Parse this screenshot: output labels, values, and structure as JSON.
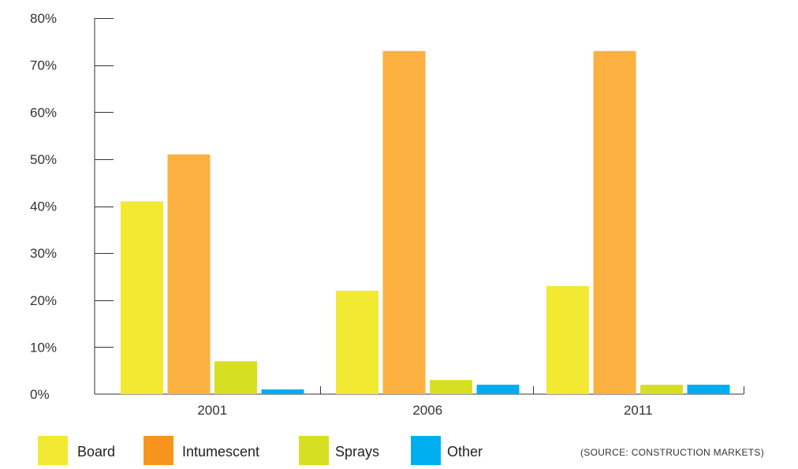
{
  "chart_data": {
    "type": "bar",
    "categories": [
      "2001",
      "2006",
      "2011"
    ],
    "series": [
      {
        "name": "Board",
        "values": [
          41,
          22,
          23
        ],
        "color": "#f2e933",
        "legend_color": "#f2e933"
      },
      {
        "name": "Intumescent",
        "values": [
          51,
          73,
          73
        ],
        "color": "#fbb040",
        "legend_color": "#f7941d"
      },
      {
        "name": "Sprays",
        "values": [
          7,
          3,
          2
        ],
        "color": "#d7df23",
        "legend_color": "#d7df23"
      },
      {
        "name": "Other",
        "values": [
          1,
          2,
          2
        ],
        "color": "#00aeef",
        "legend_color": "#00aeef"
      }
    ],
    "ylim": [
      0,
      80
    ],
    "yticks": [
      0,
      10,
      20,
      30,
      40,
      50,
      60,
      70,
      80
    ],
    "ytick_labels": [
      "0%",
      "10%",
      "20%",
      "30%",
      "40%",
      "50%",
      "60%",
      "70%",
      "80%"
    ],
    "title": "",
    "xlabel": "",
    "ylabel": "",
    "grid": false,
    "legend_position": "bottom-left",
    "source_note": "(SOURCE: CONSTRUCTION MARKETS)"
  }
}
